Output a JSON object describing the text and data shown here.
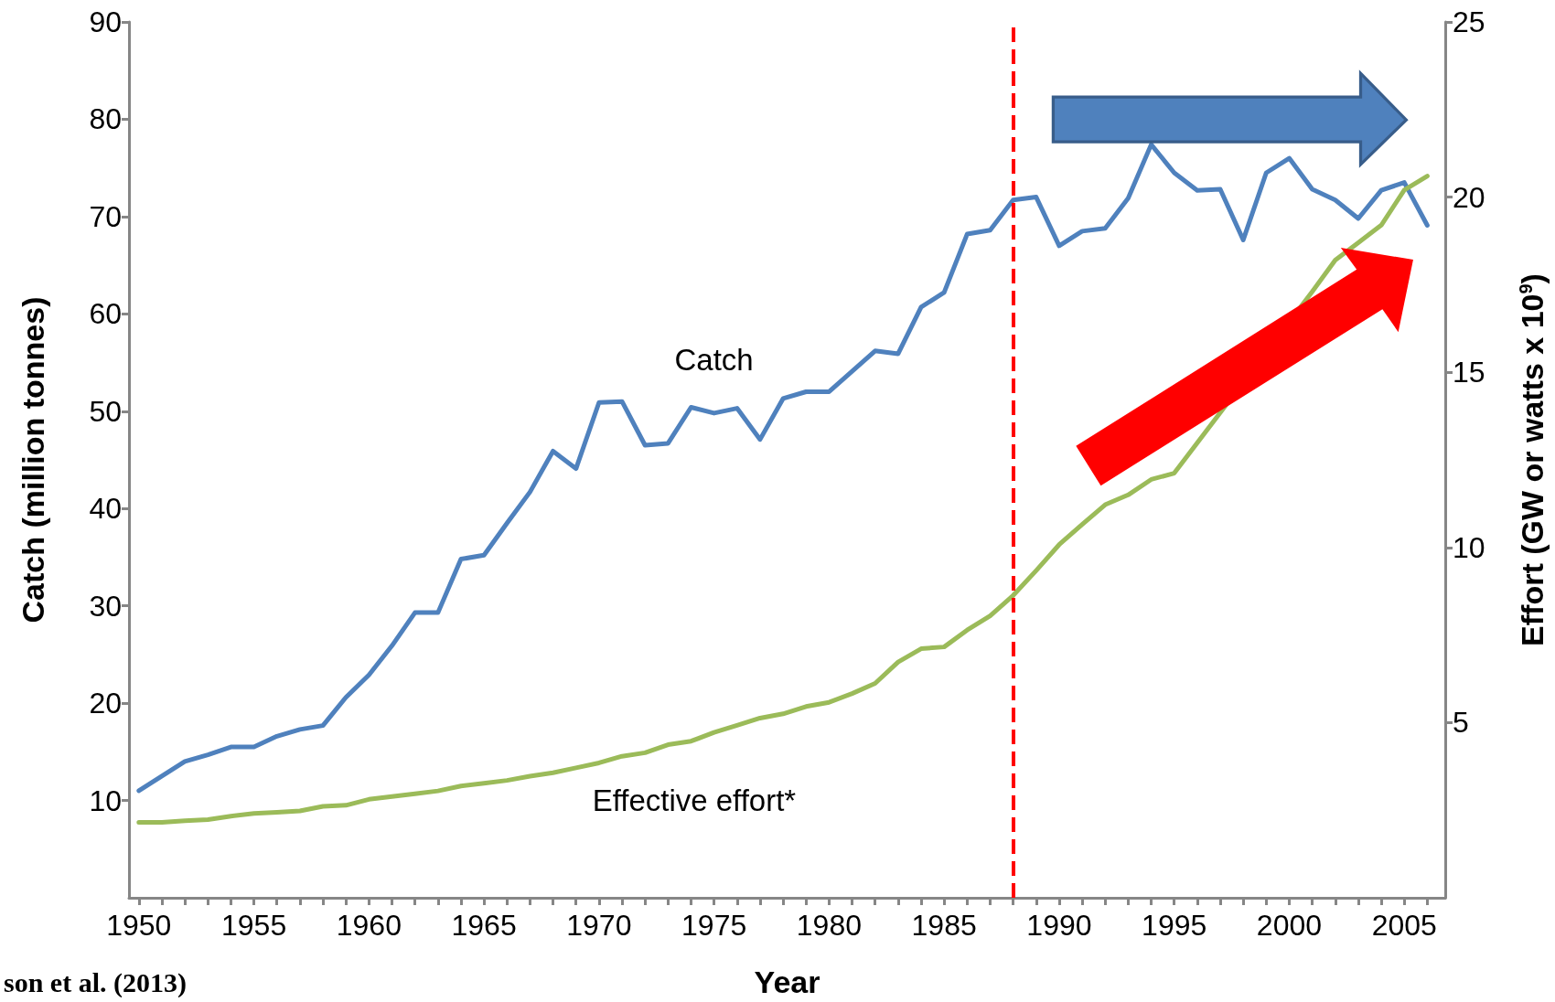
{
  "chart_data": {
    "type": "line",
    "xlabel": "Year",
    "ylabel": "Catch (million tonnes)",
    "y2label": "Effort (GW or watts x 10$^{9}$)",
    "x": [
      1950,
      1951,
      1952,
      1953,
      1954,
      1955,
      1956,
      1957,
      1958,
      1959,
      1960,
      1961,
      1962,
      1963,
      1964,
      1965,
      1966,
      1967,
      1968,
      1969,
      1970,
      1971,
      1972,
      1973,
      1974,
      1975,
      1976,
      1977,
      1978,
      1979,
      1980,
      1981,
      1982,
      1983,
      1984,
      1985,
      1986,
      1987,
      1988,
      1989,
      1990,
      1991,
      1992,
      1993,
      1994,
      1995,
      1996,
      1997,
      1998,
      1999,
      2000,
      2001,
      2002,
      2003,
      2004,
      2005,
      2006
    ],
    "series": [
      {
        "name": "Catch",
        "color": "#4f81bd",
        "values": [
          11.0,
          12.5,
          14.0,
          14.7,
          15.5,
          15.5,
          16.6,
          17.3,
          17.7,
          20.6,
          22.9,
          25.9,
          29.3,
          29.3,
          34.8,
          35.2,
          38.5,
          41.7,
          45.9,
          44.1,
          50.9,
          51.0,
          46.5,
          46.7,
          50.4,
          49.8,
          50.3,
          47.1,
          51.3,
          52.0,
          52.0,
          54.1,
          56.2,
          55.9,
          60.7,
          62.2,
          68.2,
          68.6,
          71.7,
          72.0,
          67.0,
          68.5,
          68.8,
          71.9,
          77.4,
          74.5,
          72.7,
          72.8,
          67.6,
          74.5,
          76.0,
          72.8,
          71.7,
          69.8,
          72.7,
          73.5,
          69.1
        ]
      },
      {
        "name": "Effective effort*",
        "color": "#9bbb59",
        "axis": "y2",
        "values": [
          2.15,
          2.15,
          2.2,
          2.23,
          2.33,
          2.41,
          2.44,
          2.48,
          2.61,
          2.64,
          2.81,
          2.89,
          2.97,
          3.05,
          3.19,
          3.27,
          3.35,
          3.47,
          3.57,
          3.71,
          3.85,
          4.04,
          4.14,
          4.37,
          4.47,
          4.72,
          4.92,
          5.13,
          5.25,
          5.46,
          5.58,
          5.83,
          6.12,
          6.73,
          7.11,
          7.16,
          7.64,
          8.05,
          8.63,
          9.34,
          10.08,
          10.66,
          11.22,
          11.5,
          11.94,
          12.12,
          null,
          null,
          null,
          null,
          null,
          17.3,
          18.2,
          18.7,
          19.2,
          20.2,
          20.6
        ]
      }
    ],
    "xlim": [
      1949.57,
      2006.78
    ],
    "xticks": [
      1950,
      {
        "value": 1951,
        "label": null
      },
      {
        "value": 1952,
        "label": null
      },
      {
        "value": 1953,
        "label": null
      },
      {
        "value": 1954,
        "label": null
      },
      1955,
      {
        "value": 1956,
        "label": null
      },
      {
        "value": 1957,
        "label": null
      },
      {
        "value": 1958,
        "label": null
      },
      {
        "value": 1959,
        "label": null
      },
      1960,
      {
        "value": 1961,
        "label": null
      },
      {
        "value": 1962,
        "label": null
      },
      {
        "value": 1963,
        "label": null
      },
      {
        "value": 1964,
        "label": null
      },
      1965,
      {
        "value": 1966,
        "label": null
      },
      {
        "value": 1967,
        "label": null
      },
      {
        "value": 1968,
        "label": null
      },
      {
        "value": 1969,
        "label": null
      },
      1970,
      {
        "value": 1971,
        "label": null
      },
      {
        "value": 1972,
        "label": null
      },
      {
        "value": 1973,
        "label": null
      },
      {
        "value": 1974,
        "label": null
      },
      1975,
      {
        "value": 1976,
        "label": null
      },
      {
        "value": 1977,
        "label": null
      },
      {
        "value": 1978,
        "label": null
      },
      {
        "value": 1979,
        "label": null
      },
      1980,
      {
        "value": 1981,
        "label": null
      },
      {
        "value": 1982,
        "label": null
      },
      {
        "value": 1983,
        "label": null
      },
      {
        "value": 1984,
        "label": null
      },
      1985,
      {
        "value": 1986,
        "label": null
      },
      {
        "value": 1987,
        "label": null
      },
      {
        "value": 1988,
        "label": null
      },
      {
        "value": 1989,
        "label": null
      },
      1990,
      {
        "value": 1991,
        "label": null
      },
      {
        "value": 1992,
        "label": null
      },
      {
        "value": 1993,
        "label": null
      },
      {
        "value": 1994,
        "label": null
      },
      1995,
      {
        "value": 1996,
        "label": null
      },
      {
        "value": 1997,
        "label": null
      },
      {
        "value": 1998,
        "label": null
      },
      {
        "value": 1999,
        "label": null
      },
      2000,
      {
        "value": 2001,
        "label": null
      },
      {
        "value": 2002,
        "label": null
      },
      {
        "value": 2003,
        "label": null
      },
      {
        "value": 2004,
        "label": null
      },
      2005,
      {
        "value": 2006,
        "label": null
      }
    ],
    "ylim": [
      0,
      90
    ],
    "yticks": [
      10,
      20,
      30,
      40,
      50,
      60,
      70,
      80,
      90
    ],
    "y2lim": [
      0,
      25
    ],
    "y2ticks": [
      5,
      10,
      15,
      20,
      25
    ],
    "ref_lines": [
      {
        "axis": "x",
        "value": 1988,
        "color": "#ff0000",
        "line_style": "dashed"
      }
    ],
    "annotations": [
      "son et al. (2013)"
    ],
    "grid": false,
    "legend": false,
    "marker": "none",
    "line_style": "solid"
  }
}
